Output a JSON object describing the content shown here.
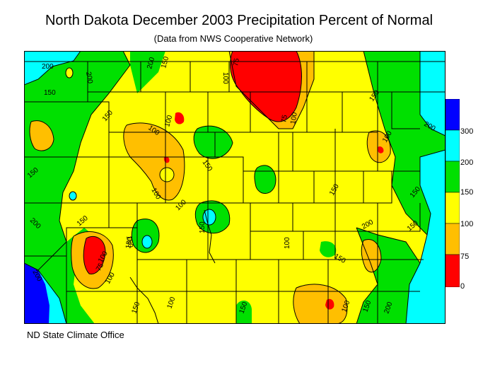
{
  "title": "North Dakota December 2003 Precipitation Percent of Normal",
  "subtitle": "(Data from NWS Cooperative Network)",
  "footer": "ND State Climate Office",
  "legend": {
    "bins": [
      {
        "label": "0",
        "color": "#ff0000"
      },
      {
        "label": "75",
        "color": "#ffbf00"
      },
      {
        "label": "100",
        "color": "#ffff00"
      },
      {
        "label": "150",
        "color": "#00e000"
      },
      {
        "label": "200",
        "color": "#00ffff"
      },
      {
        "label": "300",
        "color": "#0000ff"
      }
    ],
    "tick_labels": [
      "300",
      "200",
      "150",
      "100",
      "75",
      "0"
    ]
  },
  "contour_labels": [
    "200",
    "200",
    "200",
    "150",
    "100",
    "75",
    "150",
    "150",
    "150",
    "150",
    "100",
    "100",
    "150",
    "75",
    "100",
    "100",
    "150",
    "200",
    "150",
    "150",
    "100",
    "200",
    "150",
    "200",
    "150",
    "100",
    "150",
    "100",
    "150",
    "100",
    "75",
    "100",
    "150",
    "150",
    "150",
    "100",
    "100",
    "200",
    "150",
    "200"
  ]
}
